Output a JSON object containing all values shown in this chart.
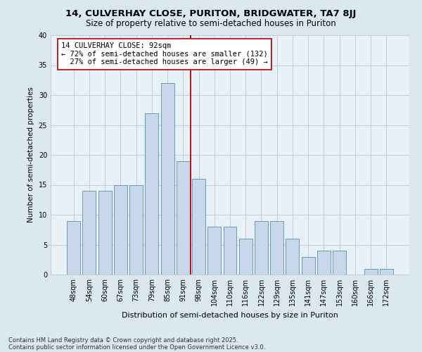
{
  "title": "14, CULVERHAY CLOSE, PURITON, BRIDGWATER, TA7 8JJ",
  "subtitle": "Size of property relative to semi-detached houses in Puriton",
  "xlabel": "Distribution of semi-detached houses by size in Puriton",
  "ylabel": "Number of semi-detached properties",
  "categories": [
    "48sqm",
    "54sqm",
    "60sqm",
    "67sqm",
    "73sqm",
    "79sqm",
    "85sqm",
    "91sqm",
    "98sqm",
    "104sqm",
    "110sqm",
    "116sqm",
    "122sqm",
    "129sqm",
    "135sqm",
    "141sqm",
    "147sqm",
    "153sqm",
    "160sqm",
    "166sqm",
    "172sqm"
  ],
  "values": [
    9,
    14,
    14,
    15,
    15,
    27,
    32,
    19,
    16,
    8,
    8,
    6,
    9,
    9,
    6,
    3,
    4,
    4,
    0,
    1,
    1
  ],
  "bar_color": "#c8d8ea",
  "bar_edge_color": "#6699bb",
  "property_line_idx": 7,
  "annotation_line1": "14 CULVERHAY CLOSE: 92sqm",
  "annotation_line2": "← 72% of semi-detached houses are smaller (132)",
  "annotation_line3": "  27% of semi-detached houses are larger (49) →",
  "ylim": [
    0,
    40
  ],
  "yticks": [
    0,
    5,
    10,
    15,
    20,
    25,
    30,
    35,
    40
  ],
  "line_color": "#bb0000",
  "footnote1": "Contains HM Land Registry data © Crown copyright and database right 2025.",
  "footnote2": "Contains public sector information licensed under the Open Government Licence v3.0.",
  "bg_color": "#dce8f0",
  "plot_bg_color": "#e8f0f8",
  "grid_color": "#c0ccda",
  "title_fontsize": 9.5,
  "subtitle_fontsize": 8.5
}
